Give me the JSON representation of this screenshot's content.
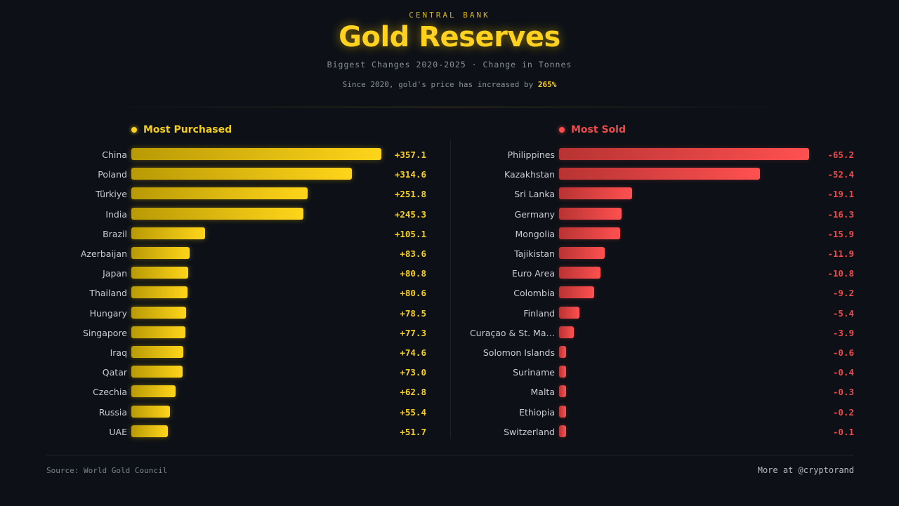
{
  "header": {
    "kicker": "CENTRAL BANK",
    "title": "Gold Reserves",
    "subtitle": "Biggest Changes 2020-2025 · Change in Tonnes",
    "note_prefix": "Since 2020, gold's price has increased by ",
    "note_highlight": "265%"
  },
  "footer": {
    "source": "Source: World Gold Council",
    "credit": "More at @cryptorand"
  },
  "colors": {
    "background": "#0d1117",
    "gold": "#ffd21f",
    "red": "#ff4b4b"
  },
  "chart_data": [
    {
      "type": "bar",
      "orientation": "horizontal",
      "title": "Most Purchased",
      "unit": "Tonnes",
      "xlim": [
        0,
        357.1
      ],
      "categories": [
        "China",
        "Poland",
        "Türkiye",
        "India",
        "Brazil",
        "Azerbaijan",
        "Japan",
        "Thailand",
        "Hungary",
        "Singapore",
        "Iraq",
        "Qatar",
        "Czechia",
        "Russia",
        "UAE"
      ],
      "values": [
        357.1,
        314.6,
        251.8,
        245.3,
        105.1,
        83.6,
        80.8,
        80.6,
        78.5,
        77.3,
        74.6,
        73.0,
        62.8,
        55.4,
        51.7
      ],
      "value_labels": [
        "+357.1",
        "+314.6",
        "+251.8",
        "+245.3",
        "+105.1",
        "+83.6",
        "+80.8",
        "+80.6",
        "+78.5",
        "+77.3",
        "+74.6",
        "+73.0",
        "+62.8",
        "+55.4",
        "+51.7"
      ]
    },
    {
      "type": "bar",
      "orientation": "horizontal",
      "title": "Most Sold",
      "unit": "Tonnes",
      "xlim": [
        0,
        65.2
      ],
      "categories": [
        "Philippines",
        "Kazakhstan",
        "Sri Lanka",
        "Germany",
        "Mongolia",
        "Tajikistan",
        "Euro Area",
        "Colombia",
        "Finland",
        "Curaçao & St. Ma…",
        "Solomon Islands",
        "Suriname",
        "Malta",
        "Ethiopia",
        "Switzerland"
      ],
      "values": [
        -65.2,
        -52.4,
        -19.1,
        -16.3,
        -15.9,
        -11.9,
        -10.8,
        -9.2,
        -5.4,
        -3.9,
        -0.6,
        -0.4,
        -0.3,
        -0.2,
        -0.1
      ],
      "value_labels": [
        "-65.2",
        "-52.4",
        "-19.1",
        "-16.3",
        "-15.9",
        "-11.9",
        "-10.8",
        "-9.2",
        "-5.4",
        "-3.9",
        "-0.6",
        "-0.4",
        "-0.3",
        "-0.2",
        "-0.1"
      ]
    }
  ]
}
